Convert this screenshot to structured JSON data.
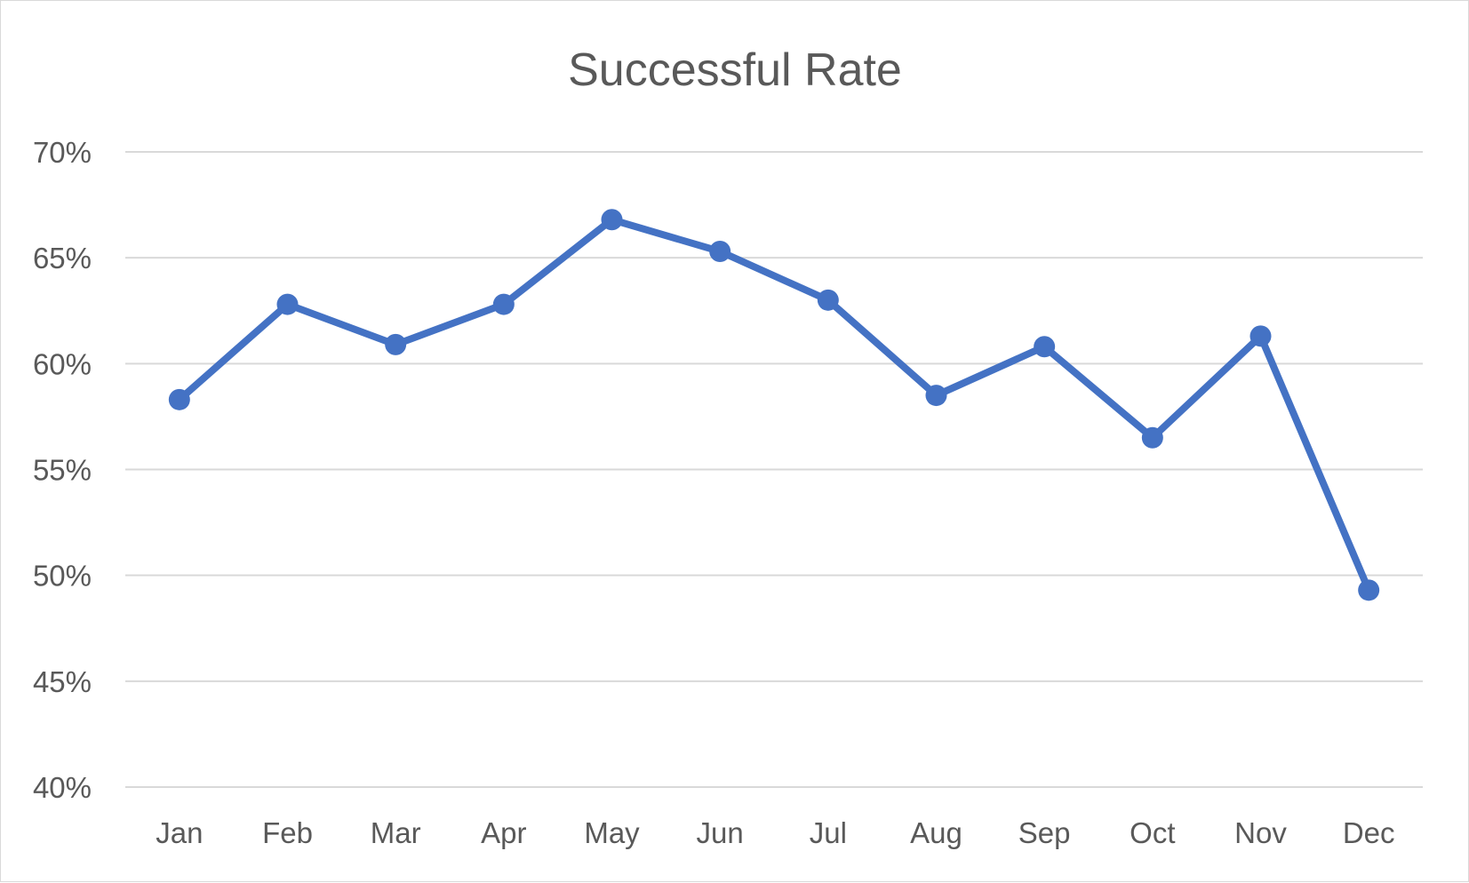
{
  "chart_data": {
    "type": "line",
    "title": "Successful Rate",
    "xlabel": "",
    "ylabel": "",
    "categories": [
      "Jan",
      "Feb",
      "Mar",
      "Apr",
      "May",
      "Jun",
      "Jul",
      "Aug",
      "Sep",
      "Oct",
      "Nov",
      "Dec"
    ],
    "series": [
      {
        "values": [
          0.583,
          0.628,
          0.609,
          0.628,
          0.668,
          0.653,
          0.63,
          0.585,
          0.608,
          0.565,
          0.613,
          0.493
        ],
        "color": "#4472c4"
      }
    ],
    "ylim": [
      0.4,
      0.7
    ],
    "yticks": [
      0.4,
      0.45,
      0.5,
      0.55,
      0.6,
      0.65,
      0.7
    ],
    "ytick_labels": [
      "40%",
      "45%",
      "50%",
      "55%",
      "60%",
      "65%",
      "70%"
    ],
    "grid": true,
    "legend": "none",
    "markers": true
  }
}
